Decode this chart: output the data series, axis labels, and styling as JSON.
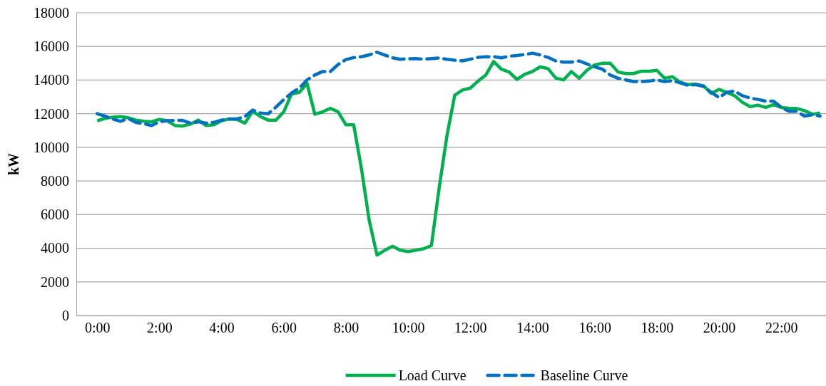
{
  "chart_data": {
    "type": "line",
    "ylabel": "kW",
    "xlim": [
      -0.67,
      23.44
    ],
    "ylim": [
      0,
      18000
    ],
    "xticks": [
      {
        "value": 0,
        "label": "0:00"
      },
      {
        "value": 2,
        "label": "2:00"
      },
      {
        "value": 4,
        "label": "4:00"
      },
      {
        "value": 6,
        "label": "6:00"
      },
      {
        "value": 8,
        "label": "8:00"
      },
      {
        "value": 10,
        "label": "10:00"
      },
      {
        "value": 12,
        "label": "12:00"
      },
      {
        "value": 14,
        "label": "14:00"
      },
      {
        "value": 16,
        "label": "16:00"
      },
      {
        "value": 18,
        "label": "18:00"
      },
      {
        "value": 20,
        "label": "20:00"
      },
      {
        "value": 22,
        "label": "22:00"
      }
    ],
    "yticks": [
      0,
      2000,
      4000,
      6000,
      8000,
      10000,
      12000,
      14000,
      16000,
      18000
    ],
    "grid": "y",
    "legend": "bottom",
    "x": [
      0,
      0.25,
      0.5,
      0.75,
      1,
      1.25,
      1.5,
      1.75,
      2,
      2.25,
      2.5,
      2.75,
      3,
      3.25,
      3.5,
      3.75,
      4,
      4.25,
      4.5,
      4.75,
      5,
      5.25,
      5.5,
      5.75,
      6,
      6.25,
      6.5,
      6.75,
      7,
      7.25,
      7.5,
      7.75,
      8,
      8.25,
      8.5,
      8.75,
      9,
      9.25,
      9.5,
      9.75,
      10,
      10.25,
      10.5,
      10.75,
      11,
      11.25,
      11.5,
      11.75,
      12,
      12.25,
      12.5,
      12.75,
      13,
      13.25,
      13.5,
      13.75,
      14,
      14.25,
      14.5,
      14.75,
      15,
      15.25,
      15.5,
      15.75,
      16,
      16.25,
      16.5,
      16.75,
      17,
      17.25,
      17.5,
      17.75,
      18,
      18.25,
      18.5,
      18.75,
      19,
      19.25,
      19.5,
      19.75,
      20,
      20.25,
      20.5,
      20.75,
      21,
      21.25,
      21.5,
      21.75,
      22,
      22.25,
      22.5,
      22.75,
      23,
      23.25
    ],
    "series": [
      {
        "name": "Load Curve",
        "color": "#00b050",
        "line_style": "solid",
        "values": [
          11580,
          11720,
          11800,
          11830,
          11760,
          11620,
          11550,
          11520,
          11660,
          11580,
          11300,
          11270,
          11380,
          11620,
          11300,
          11340,
          11580,
          11690,
          11660,
          11440,
          12140,
          11830,
          11620,
          11620,
          12110,
          13170,
          13270,
          13800,
          11970,
          12110,
          12320,
          12110,
          11340,
          11340,
          8730,
          5640,
          3590,
          3880,
          4120,
          3880,
          3800,
          3880,
          3970,
          4160,
          7600,
          10700,
          13100,
          13410,
          13520,
          13940,
          14300,
          15100,
          14650,
          14480,
          14040,
          14340,
          14510,
          14790,
          14680,
          14120,
          14010,
          14510,
          14110,
          14580,
          14900,
          15000,
          15000,
          14480,
          14390,
          14390,
          14530,
          14530,
          14580,
          14110,
          14200,
          13870,
          13730,
          13760,
          13660,
          13210,
          13450,
          13270,
          13070,
          12680,
          12420,
          12510,
          12370,
          12540,
          12370,
          12320,
          12310,
          12180,
          11970,
          12040
        ]
      },
      {
        "name": "Baseline Curve",
        "color": "#0070c0",
        "line_style": "dashed",
        "values": [
          12000,
          11860,
          11690,
          11550,
          11720,
          11480,
          11410,
          11300,
          11520,
          11580,
          11600,
          11600,
          11440,
          11520,
          11440,
          11480,
          11620,
          11690,
          11690,
          11830,
          12220,
          12040,
          12000,
          12390,
          12840,
          13230,
          13520,
          14010,
          14300,
          14510,
          14510,
          14930,
          15220,
          15340,
          15390,
          15500,
          15660,
          15490,
          15320,
          15240,
          15270,
          15280,
          15240,
          15280,
          15320,
          15240,
          15180,
          15140,
          15240,
          15350,
          15390,
          15390,
          15320,
          15420,
          15460,
          15520,
          15600,
          15490,
          15350,
          15140,
          15070,
          15070,
          15140,
          14960,
          14790,
          14650,
          14300,
          14110,
          14010,
          13910,
          13910,
          13940,
          14010,
          13910,
          13970,
          13830,
          13690,
          13730,
          13630,
          13270,
          12960,
          13270,
          13350,
          13070,
          12930,
          12850,
          12750,
          12750,
          12390,
          12140,
          12140,
          11860,
          11940,
          11860
        ]
      }
    ]
  }
}
